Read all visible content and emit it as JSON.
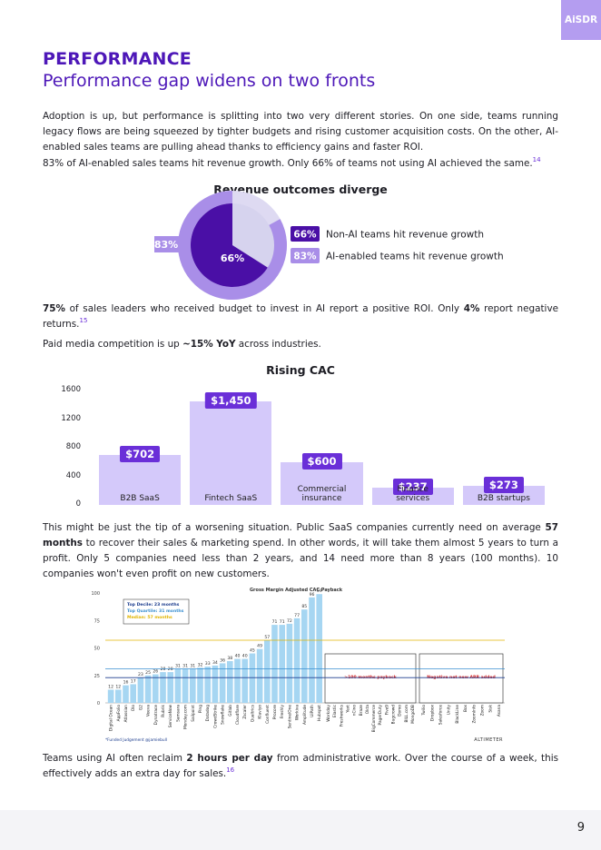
{
  "brand": "AiSDR",
  "heading": {
    "kicker": "PERFORMANCE",
    "title": "Performance gap widens on two fronts"
  },
  "intro": [
    [
      {
        "text": "Adoption is up, but performance is splitting into two very different stories. On one side, teams running legacy flows are being squeezed by tighter budgets and rising customer acquisition costs. On the other, AI-enabled sales teams are pulling ahead thanks to efficiency gains and faster ROI."
      }
    ],
    [
      {
        "text": "83% of AI-enabled sales teams hit revenue growth. Only 66% of teams not using AI achieved the same."
      },
      {
        "text": "14",
        "style": "sup"
      }
    ]
  ],
  "revenue_chart": {
    "type": "pie",
    "title": "Revenue outcomes diverge",
    "series": [
      {
        "name": "Non-AI teams hit revenue growth",
        "value": 66,
        "value_label": "66%",
        "color": "#4a0fa6"
      },
      {
        "name": "AI-enabled teams hit revenue growth",
        "value": 83,
        "value_label": "83%",
        "color": "#a98ee8"
      }
    ]
  },
  "roi": [
    [
      {
        "text": "75%",
        "style": "bold"
      },
      {
        "text": " of sales leaders who received budget to invest in AI report a positive ROI. Only "
      },
      {
        "text": "4%",
        "style": "bold"
      },
      {
        "text": " report negative returns."
      },
      {
        "text": "15",
        "style": "sup"
      }
    ],
    [
      {
        "text": "Paid media competition is up "
      },
      {
        "text": "~15% YoY",
        "style": "bold"
      },
      {
        "text": " across industries."
      }
    ]
  ],
  "cac_chart": {
    "type": "bar",
    "title": "Rising CAC",
    "categories": [
      "B2B SaaS",
      "Fintech SaaS",
      "Commercial insurance",
      "Finance services",
      "B2B startups"
    ],
    "values": [
      702,
      1450,
      600,
      237,
      273
    ],
    "value_labels": [
      "$702",
      "$1,450",
      "$600",
      "$237",
      "$273"
    ],
    "color": "#d4c9fa",
    "label_color": "#6a2fd8",
    "ylim": [
      0,
      1600
    ],
    "yticks": [
      0,
      400,
      800,
      1200,
      1600
    ]
  },
  "payback_text": [
    [
      {
        "text": "This might be just the tip of a worsening situation. Public SaaS companies currently need on average "
      },
      {
        "text": "57 months",
        "style": "bold"
      },
      {
        "text": " to recover their sales & marketing spend. In other words, it will take them almost 5 years to turn a profit. Only 5 companies need less than 2 years, and 14 need more than 8 years (100 months). 10 companies won't even profit on new customers."
      }
    ]
  ],
  "payback_chart": {
    "type": "bar",
    "title": "Gross Margin Adjusted CAC Payback",
    "categories": [
      "Digital Ocean",
      "AppFolio",
      "Atlassian",
      "Olo",
      "G2",
      "Veeva",
      "Dynatrace",
      "Rubrik",
      "ServiceNow",
      "Samsara",
      "Monday.com",
      "Sailpoint",
      "Ping",
      "Datadog",
      "CrowdStrike",
      "Snowflake",
      "Gitlab",
      "Cloudflare",
      "Zscaler",
      "Qualtrics",
      "Klaviyo",
      "Confluent",
      "Procore",
      "Freshly",
      "SentinelOne",
      "Workiva",
      "Amplitude",
      "UiPath",
      "Hubspot"
    ],
    "values": [
      12,
      12,
      16,
      17,
      23,
      25,
      26,
      28,
      28,
      31,
      31,
      31,
      32,
      33,
      34,
      36,
      38,
      40,
      40,
      45,
      49,
      57,
      71,
      71,
      72,
      77,
      85,
      96,
      99
    ],
    "color": "#a6d6f2",
    "ylim": [
      0,
      100
    ],
    "yticks": [
      0,
      25,
      50,
      75,
      100
    ],
    "thresholds": [
      {
        "label": "Top Decile: 23 months",
        "value": 23,
        "color": "#1f3f8f"
      },
      {
        "label": "Top Quartile: 31 months",
        "value": 31,
        "color": "#3a8fd0"
      },
      {
        "label": "Median: 57 months",
        "value": 57,
        "color": "#e0b400"
      }
    ],
    "groups": [
      {
        "label": ">100 months payback",
        "companies": [
          "Workday",
          "Elastic",
          "Freshworks",
          "Yext",
          "nCino",
          "Braze",
          "Okta",
          "BigCommerce",
          "PagerDuty",
          "Five9",
          "Bugcrowd",
          "Domo",
          "BILL.com",
          "MongoDB"
        ]
      },
      {
        "label": "Negative net new ARR added",
        "companies": [
          "Twilio",
          "Dropbox",
          "Salesforce",
          "Unity",
          "BlackLine",
          "Box",
          "ZoomInfo",
          "Zoom",
          "Sisk",
          "Asana"
        ]
      }
    ],
    "source": "*Funded Judgement @jamiebull",
    "brand": "ALTIMETER"
  },
  "closing": [
    [
      {
        "text": "Teams using AI often reclaim "
      },
      {
        "text": "2 hours per day",
        "style": "bold"
      },
      {
        "text": " from administrative work. Over the course of a week, this effectively adds an extra day for sales."
      },
      {
        "text": "16",
        "style": "sup"
      }
    ]
  ],
  "page_number": "9"
}
